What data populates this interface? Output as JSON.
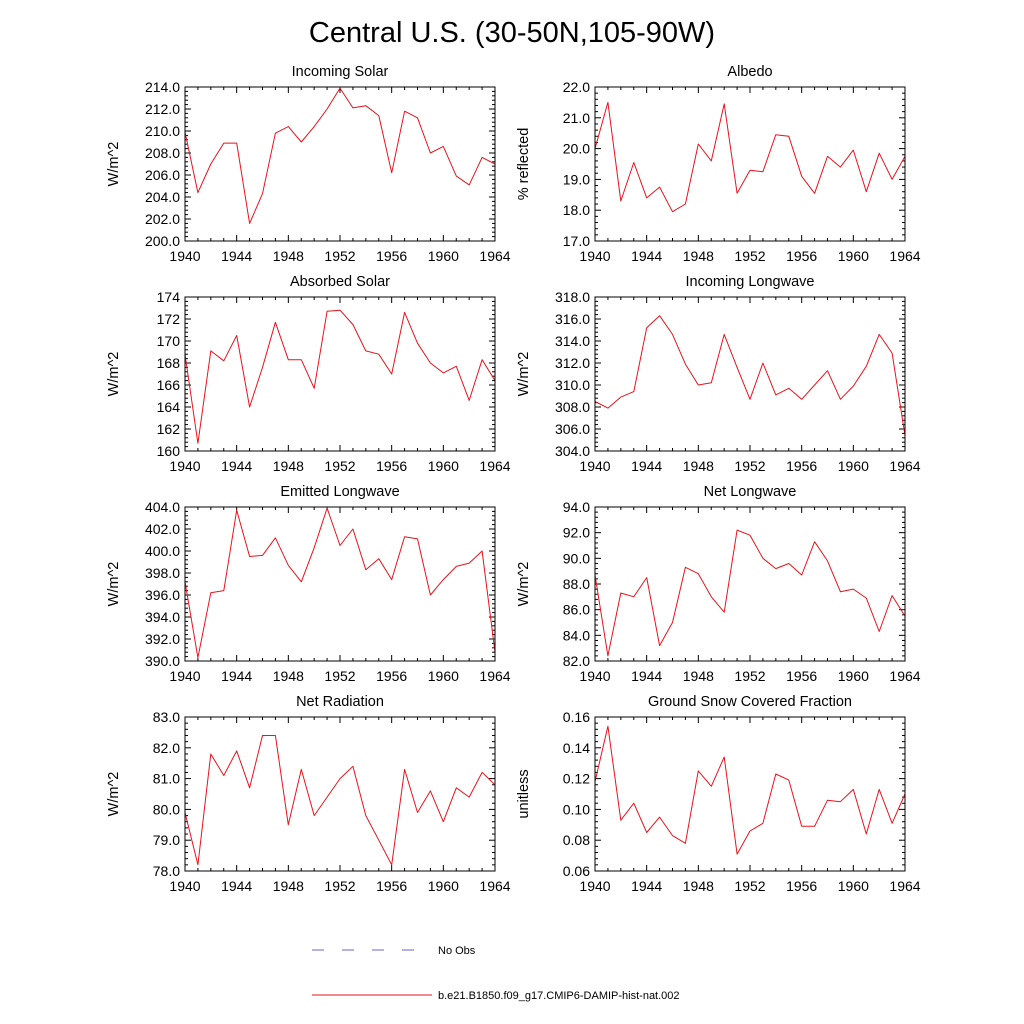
{
  "figure": {
    "title": "Central U.S. (30-50N,105-90W)"
  },
  "legend": {
    "items": [
      {
        "label": "No Obs",
        "color": "#6666cc",
        "dashed": true
      },
      {
        "label": "b.e21.B1850.f09_g17.CMIP6-DAMIP-hist-nat.002",
        "color": "#e8131b",
        "dashed": false
      }
    ]
  },
  "colors": {
    "series": "#e8131b"
  },
  "chart_data": [
    {
      "type": "line",
      "title": "Incoming Solar",
      "ylabel": "W/m^2",
      "ylim": [
        200,
        214
      ],
      "yticks": [
        200,
        202,
        204,
        206,
        208,
        210,
        212,
        214
      ],
      "ytick_labels": [
        "200.0",
        "202.0",
        "204.0",
        "206.0",
        "208.0",
        "210.0",
        "212.0",
        "214.0"
      ],
      "xlim": [
        1940,
        1964
      ],
      "xticks": [
        1940,
        1944,
        1948,
        1952,
        1956,
        1960,
        1964
      ],
      "x": [
        1940,
        1941,
        1942,
        1943,
        1944,
        1945,
        1946,
        1947,
        1948,
        1949,
        1950,
        1951,
        1952,
        1953,
        1954,
        1955,
        1956,
        1957,
        1958,
        1959,
        1960,
        1961,
        1962,
        1963,
        1964
      ],
      "values": [
        209.9,
        204.4,
        207.0,
        208.9,
        208.9,
        201.6,
        204.3,
        209.8,
        210.4,
        209.0,
        210.4,
        212.0,
        213.9,
        212.1,
        212.3,
        211.4,
        206.2,
        211.8,
        211.2,
        208.0,
        208.6,
        205.9,
        205.1,
        207.6,
        207.0
      ]
    },
    {
      "type": "line",
      "title": "Albedo",
      "ylabel": "% reflected",
      "ylim": [
        17,
        22
      ],
      "yticks": [
        17,
        18,
        19,
        20,
        21,
        22
      ],
      "ytick_labels": [
        "17.0",
        "18.0",
        "19.0",
        "20.0",
        "21.0",
        "22.0"
      ],
      "xlim": [
        1940,
        1964
      ],
      "xticks": [
        1940,
        1944,
        1948,
        1952,
        1956,
        1960,
        1964
      ],
      "x": [
        1940,
        1941,
        1942,
        1943,
        1944,
        1945,
        1946,
        1947,
        1948,
        1949,
        1950,
        1951,
        1952,
        1953,
        1954,
        1955,
        1956,
        1957,
        1958,
        1959,
        1960,
        1961,
        1962,
        1963,
        1964
      ],
      "values": [
        20.0,
        21.5,
        18.3,
        19.55,
        18.4,
        18.75,
        17.95,
        18.2,
        20.15,
        19.6,
        21.45,
        18.55,
        19.3,
        19.25,
        20.45,
        20.4,
        19.1,
        18.55,
        19.75,
        19.4,
        19.95,
        18.6,
        19.85,
        19.0,
        19.75
      ]
    },
    {
      "type": "line",
      "title": "Absorbed Solar",
      "ylabel": "W/m^2",
      "ylim": [
        160,
        174
      ],
      "yticks": [
        160,
        162,
        164,
        166,
        168,
        170,
        172,
        174
      ],
      "ytick_labels": [
        "160",
        "162",
        "164",
        "166",
        "168",
        "170",
        "172",
        "174"
      ],
      "xlim": [
        1940,
        1964
      ],
      "xticks": [
        1940,
        1944,
        1948,
        1952,
        1956,
        1960,
        1964
      ],
      "x": [
        1940,
        1941,
        1942,
        1943,
        1944,
        1945,
        1946,
        1947,
        1948,
        1949,
        1950,
        1951,
        1952,
        1953,
        1954,
        1955,
        1956,
        1957,
        1958,
        1959,
        1960,
        1961,
        1962,
        1963,
        1964
      ],
      "values": [
        168.8,
        160.7,
        169.1,
        168.2,
        170.5,
        164.0,
        167.6,
        171.7,
        168.3,
        168.3,
        165.7,
        172.7,
        172.8,
        171.5,
        169.1,
        168.8,
        167.0,
        172.6,
        169.8,
        168.0,
        167.1,
        167.7,
        164.6,
        168.3,
        166.4
      ]
    },
    {
      "type": "line",
      "title": "Incoming Longwave",
      "ylabel": "W/m^2",
      "ylim": [
        304,
        318
      ],
      "yticks": [
        304,
        306,
        308,
        310,
        312,
        314,
        316,
        318
      ],
      "ytick_labels": [
        "304.0",
        "306.0",
        "308.0",
        "310.0",
        "312.0",
        "314.0",
        "316.0",
        "318.0"
      ],
      "xlim": [
        1940,
        1964
      ],
      "xticks": [
        1940,
        1944,
        1948,
        1952,
        1956,
        1960,
        1964
      ],
      "x": [
        1940,
        1941,
        1942,
        1943,
        1944,
        1945,
        1946,
        1947,
        1948,
        1949,
        1950,
        1951,
        1952,
        1953,
        1954,
        1955,
        1956,
        1957,
        1958,
        1959,
        1960,
        1961,
        1962,
        1963,
        1964
      ],
      "values": [
        308.5,
        307.9,
        308.9,
        309.4,
        315.2,
        316.3,
        314.6,
        311.9,
        310.0,
        310.2,
        314.6,
        311.6,
        308.7,
        312.0,
        309.1,
        309.7,
        308.7,
        310.0,
        311.3,
        308.7,
        309.9,
        311.7,
        314.6,
        312.9,
        305.4
      ]
    },
    {
      "type": "line",
      "title": "Emitted Longwave",
      "ylabel": "W/m^2",
      "ylim": [
        390,
        404
      ],
      "yticks": [
        390,
        392,
        394,
        396,
        398,
        400,
        402,
        404
      ],
      "ytick_labels": [
        "390.0",
        "392.0",
        "394.0",
        "396.0",
        "398.0",
        "400.0",
        "402.0",
        "404.0"
      ],
      "xlim": [
        1940,
        1964
      ],
      "xticks": [
        1940,
        1944,
        1948,
        1952,
        1956,
        1960,
        1964
      ],
      "x": [
        1940,
        1941,
        1942,
        1943,
        1944,
        1945,
        1946,
        1947,
        1948,
        1949,
        1950,
        1951,
        1952,
        1953,
        1954,
        1955,
        1956,
        1957,
        1958,
        1959,
        1960,
        1961,
        1962,
        1963,
        1964
      ],
      "values": [
        397.2,
        390.3,
        396.2,
        396.4,
        403.7,
        399.5,
        399.6,
        401.2,
        398.7,
        397.2,
        400.3,
        403.9,
        400.5,
        402.0,
        398.3,
        399.3,
        397.4,
        401.3,
        401.1,
        396.0,
        397.4,
        398.6,
        398.9,
        400.0,
        390.8
      ]
    },
    {
      "type": "line",
      "title": "Net Longwave",
      "ylabel": "W/m^2",
      "ylim": [
        82,
        94
      ],
      "yticks": [
        82,
        84,
        86,
        88,
        90,
        92,
        94
      ],
      "ytick_labels": [
        "82.0",
        "84.0",
        "86.0",
        "88.0",
        "90.0",
        "92.0",
        "94.0"
      ],
      "xlim": [
        1940,
        1964
      ],
      "xticks": [
        1940,
        1944,
        1948,
        1952,
        1956,
        1960,
        1964
      ],
      "x": [
        1940,
        1941,
        1942,
        1943,
        1944,
        1945,
        1946,
        1947,
        1948,
        1949,
        1950,
        1951,
        1952,
        1953,
        1954,
        1955,
        1956,
        1957,
        1958,
        1959,
        1960,
        1961,
        1962,
        1963,
        1964
      ],
      "values": [
        88.7,
        82.4,
        87.3,
        87.0,
        88.5,
        83.2,
        85.0,
        89.3,
        88.8,
        87.0,
        85.8,
        92.2,
        91.8,
        90.0,
        89.2,
        89.6,
        88.7,
        91.3,
        89.8,
        87.4,
        87.6,
        86.9,
        84.3,
        87.1,
        85.5
      ]
    },
    {
      "type": "line",
      "title": "Net Radiation",
      "ylabel": "W/m^2",
      "ylim": [
        78,
        83
      ],
      "yticks": [
        78,
        79,
        80,
        81,
        82,
        83
      ],
      "ytick_labels": [
        "78.0",
        "79.0",
        "80.0",
        "81.0",
        "82.0",
        "83.0"
      ],
      "xlim": [
        1940,
        1964
      ],
      "xticks": [
        1940,
        1944,
        1948,
        1952,
        1956,
        1960,
        1964
      ],
      "x": [
        1940,
        1941,
        1942,
        1943,
        1944,
        1945,
        1946,
        1947,
        1948,
        1949,
        1950,
        1951,
        1952,
        1953,
        1954,
        1955,
        1956,
        1957,
        1958,
        1959,
        1960,
        1961,
        1962,
        1963,
        1964
      ],
      "values": [
        79.9,
        78.2,
        81.8,
        81.1,
        81.9,
        80.7,
        82.4,
        82.4,
        79.5,
        81.3,
        79.8,
        80.4,
        81.0,
        81.4,
        79.8,
        79.0,
        78.2,
        81.3,
        79.9,
        80.6,
        79.6,
        80.7,
        80.4,
        81.2,
        80.8
      ]
    },
    {
      "type": "line",
      "title": "Ground Snow Covered Fraction",
      "ylabel": "unitless",
      "ylim": [
        0.06,
        0.16
      ],
      "yticks": [
        0.06,
        0.08,
        0.1,
        0.12,
        0.14,
        0.16
      ],
      "ytick_labels": [
        "0.06",
        "0.08",
        "0.10",
        "0.12",
        "0.14",
        "0.16"
      ],
      "xlim": [
        1940,
        1964
      ],
      "xticks": [
        1940,
        1944,
        1948,
        1952,
        1956,
        1960,
        1964
      ],
      "x": [
        1940,
        1941,
        1942,
        1943,
        1944,
        1945,
        1946,
        1947,
        1948,
        1949,
        1950,
        1951,
        1952,
        1953,
        1954,
        1955,
        1956,
        1957,
        1958,
        1959,
        1960,
        1961,
        1962,
        1963,
        1964
      ],
      "values": [
        0.118,
        0.154,
        0.093,
        0.104,
        0.085,
        0.095,
        0.083,
        0.078,
        0.125,
        0.115,
        0.134,
        0.071,
        0.086,
        0.091,
        0.123,
        0.119,
        0.089,
        0.089,
        0.106,
        0.105,
        0.113,
        0.084,
        0.113,
        0.091,
        0.11
      ]
    }
  ]
}
